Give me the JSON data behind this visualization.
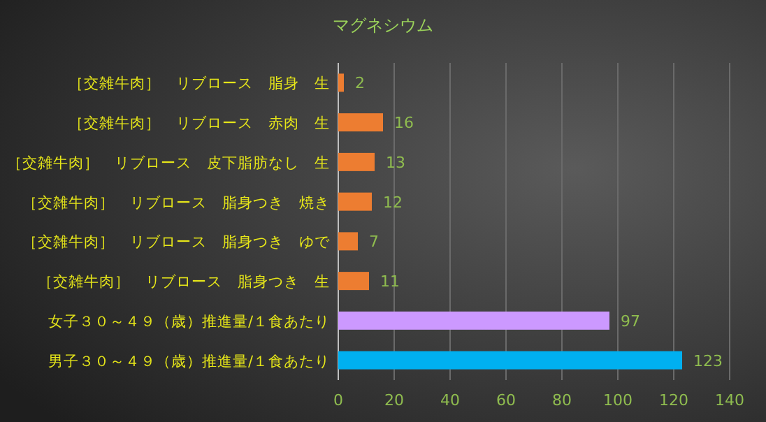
{
  "chart_data": {
    "type": "bar",
    "orientation": "horizontal",
    "title": "マグネシウム",
    "categories": [
      "［交雑牛肉］　リブロース　脂身　生",
      "［交雑牛肉］　リブロース　赤肉　生",
      "［交雑牛肉］　リブロース　皮下脂肪なし　生",
      "［交雑牛肉］　リブロース　脂身つき　焼き",
      "［交雑牛肉］　リブロース　脂身つき　ゆで",
      "［交雑牛肉］　リブロース　脂身つき　生",
      "女子３０～４９（歳）推進量/１食あたり",
      "男子３０～４９（歳）推進量/１食あたり"
    ],
    "values": [
      2,
      16,
      13,
      12,
      7,
      11,
      97,
      123
    ],
    "colors": [
      "#ed7d31",
      "#ed7d31",
      "#ed7d31",
      "#ed7d31",
      "#ed7d31",
      "#ed7d31",
      "#cc99ff",
      "#00b0f0"
    ],
    "xlim": [
      0,
      140
    ],
    "xticks": [
      0,
      20,
      40,
      60,
      80,
      100,
      120,
      140
    ],
    "grid": "x",
    "data_labels": true
  }
}
